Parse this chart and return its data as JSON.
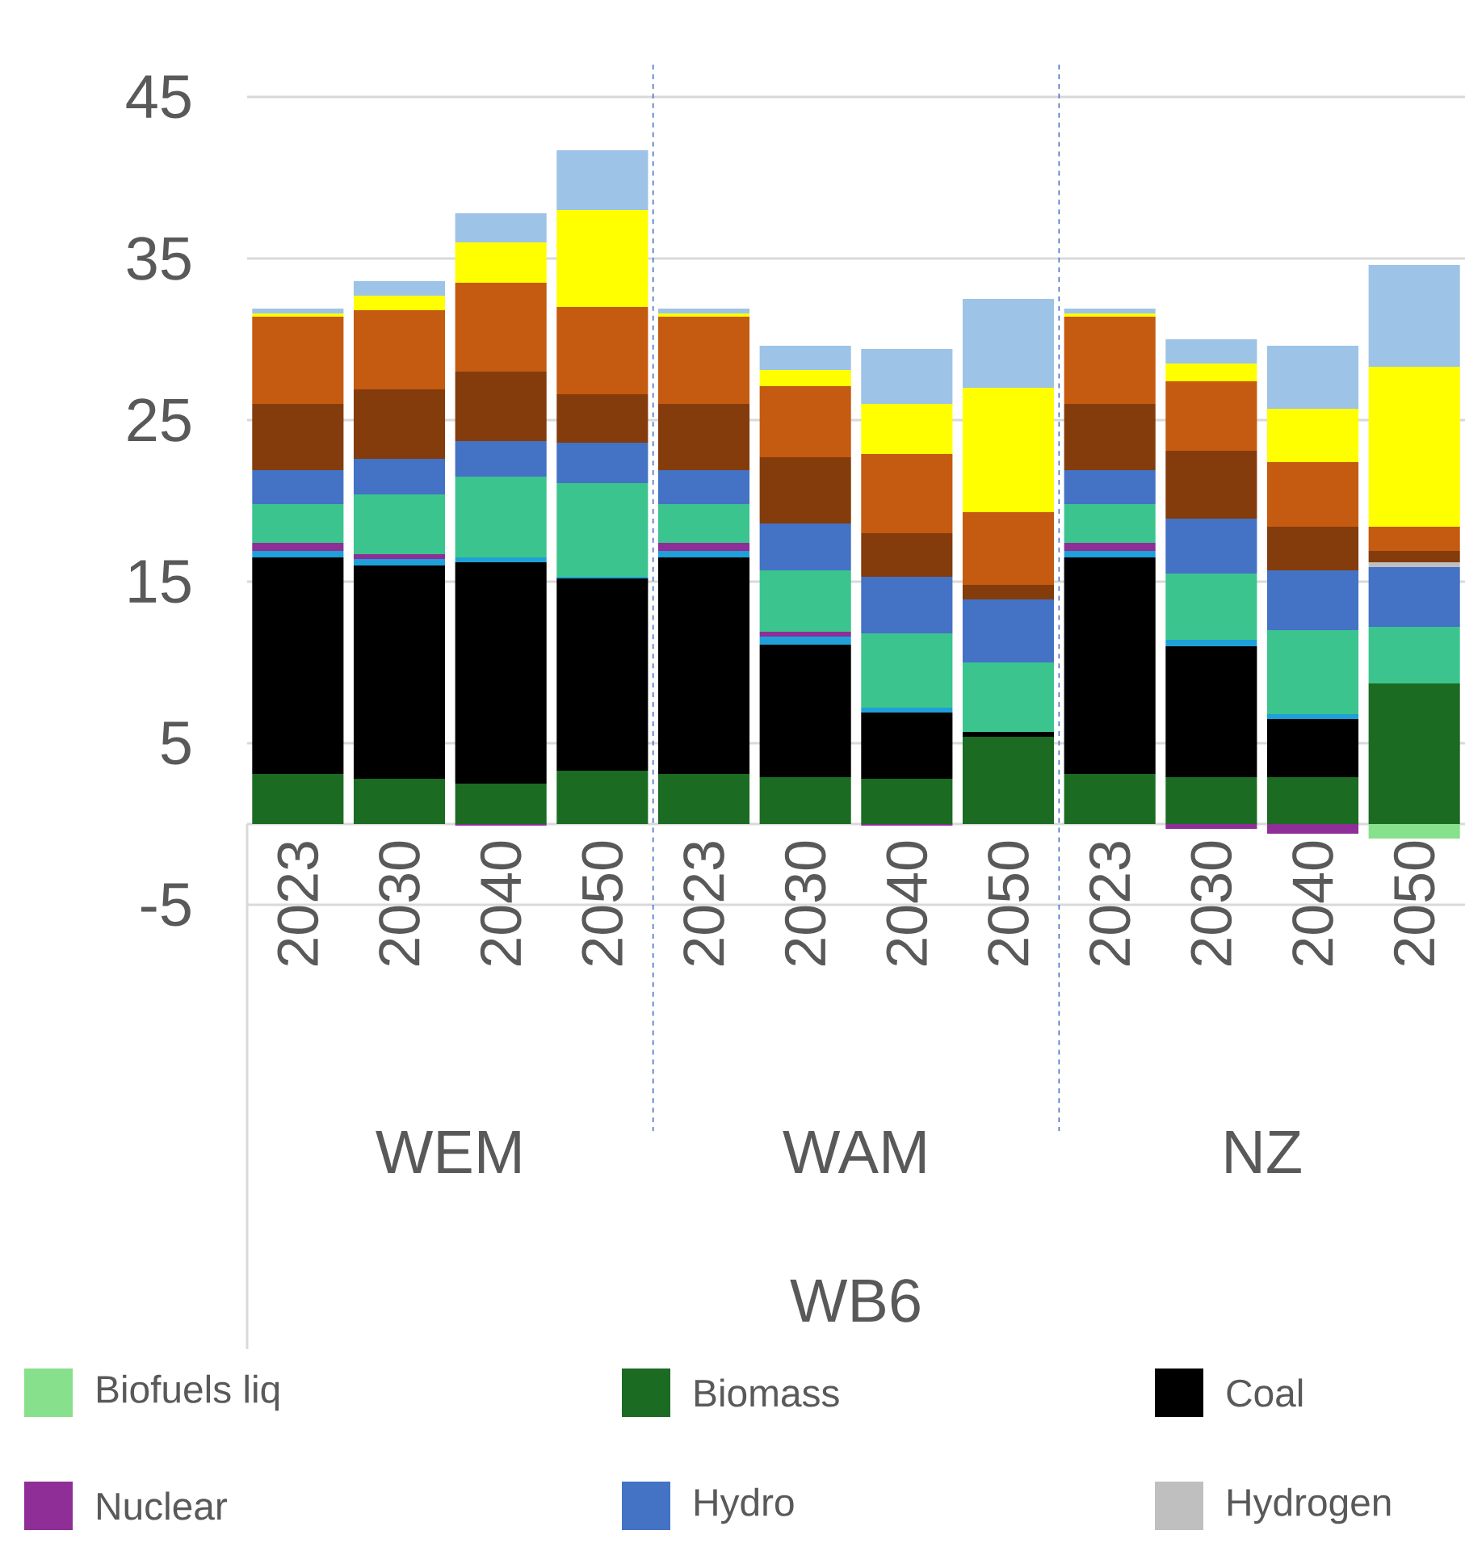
{
  "chart_data": {
    "type": "bar",
    "stacked": true,
    "categories": [
      "2023",
      "2030",
      "2040",
      "2050",
      "2023",
      "2030",
      "2040",
      "2050",
      "2023",
      "2030",
      "2040",
      "2050"
    ],
    "series": [
      {
        "name": "Biofuels liq",
        "color": "#86e08c",
        "values": [
          0,
          0,
          0,
          0,
          0,
          0,
          0,
          0,
          0,
          0,
          0,
          -0.9
        ]
      },
      {
        "name": "Biomass",
        "color": "#1b6b22",
        "values": [
          3.1,
          2.8,
          2.5,
          3.3,
          3.1,
          2.9,
          2.8,
          5.4,
          3.1,
          2.9,
          2.9,
          8.7
        ]
      },
      {
        "name": "Coal",
        "color": "#000000",
        "values": [
          13.4,
          13.2,
          13.7,
          11.9,
          13.4,
          8.2,
          4.1,
          0.3,
          13.4,
          8.1,
          3.6,
          0
        ]
      },
      {
        "color": "#1fa0d8",
        "values": [
          0.4,
          0.4,
          0.3,
          0.1,
          0.4,
          0.5,
          0.3,
          0,
          0.4,
          0.4,
          0.3,
          0
        ]
      },
      {
        "name": "Nuclear",
        "color": "#8e2e96",
        "values": [
          0.5,
          0.3,
          -0.1,
          0,
          0.5,
          0.3,
          -0.1,
          0,
          0.5,
          -0.3,
          -0.6,
          0
        ]
      },
      {
        "color": "#3cc48f",
        "values": [
          2.4,
          3.7,
          5.0,
          5.8,
          2.4,
          3.8,
          4.6,
          4.3,
          2.4,
          4.1,
          5.2,
          3.5
        ]
      },
      {
        "name": "Hydro",
        "color": "#4472c4",
        "values": [
          2.1,
          2.2,
          2.2,
          2.5,
          2.1,
          2.9,
          3.5,
          3.9,
          2.1,
          3.4,
          3.7,
          3.7
        ]
      },
      {
        "name": "Hydrogen",
        "color": "#bfbfbf",
        "values": [
          0,
          0,
          0,
          0,
          0,
          0,
          0,
          0,
          0,
          0,
          0,
          0.3
        ]
      },
      {
        "color": "#843c0c",
        "values": [
          4.1,
          4.3,
          4.3,
          3.0,
          4.1,
          4.1,
          2.7,
          0.9,
          4.1,
          4.2,
          2.7,
          0.7
        ]
      },
      {
        "color": "#c55a11",
        "values": [
          5.4,
          4.9,
          5.5,
          5.4,
          5.4,
          4.4,
          4.9,
          4.5,
          5.4,
          4.3,
          4.0,
          1.5
        ]
      },
      {
        "color": "#ffff00",
        "values": [
          0.2,
          0.9,
          2.5,
          6.0,
          0.2,
          1.0,
          3.1,
          7.7,
          0.2,
          1.1,
          3.3,
          9.9
        ]
      },
      {
        "color": "#9dc3e6",
        "values": [
          0.3,
          0.9,
          1.8,
          3.7,
          0.3,
          1.5,
          3.4,
          5.5,
          0.3,
          1.5,
          3.9,
          6.3
        ]
      }
    ],
    "ylim": [
      -5,
      47
    ],
    "yticks": [
      -5,
      5,
      15,
      25,
      35,
      45
    ],
    "grid": "y",
    "legend": "bottom",
    "annotations": [
      "WEM",
      "WAM",
      "NZ",
      "WB6"
    ]
  }
}
